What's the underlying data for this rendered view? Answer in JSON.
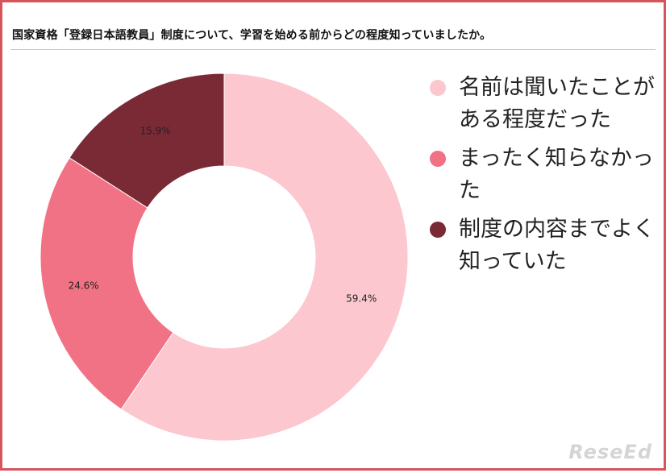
{
  "title": "国家資格「登録日本語教員」制度について、学習を始める前からどの程度知っていましたか。",
  "watermark": "ReseEd",
  "chart_data": {
    "type": "pie",
    "donut": true,
    "title": "国家資格「登録日本語教員」制度について、学習を始める前からどの程度知っていましたか。",
    "legend_position": "right",
    "series": [
      {
        "name": "名前は聞いたことがある程度だった",
        "value": 59.4,
        "label": "59.4%",
        "color": "#fcc7cf"
      },
      {
        "name": "まったく知らなかった",
        "value": 24.6,
        "label": "24.6%",
        "color": "#f27285"
      },
      {
        "name": "制度の内容までよく知っていた",
        "value": 15.9,
        "label": "15.9%",
        "color": "#7a2a35"
      }
    ]
  }
}
